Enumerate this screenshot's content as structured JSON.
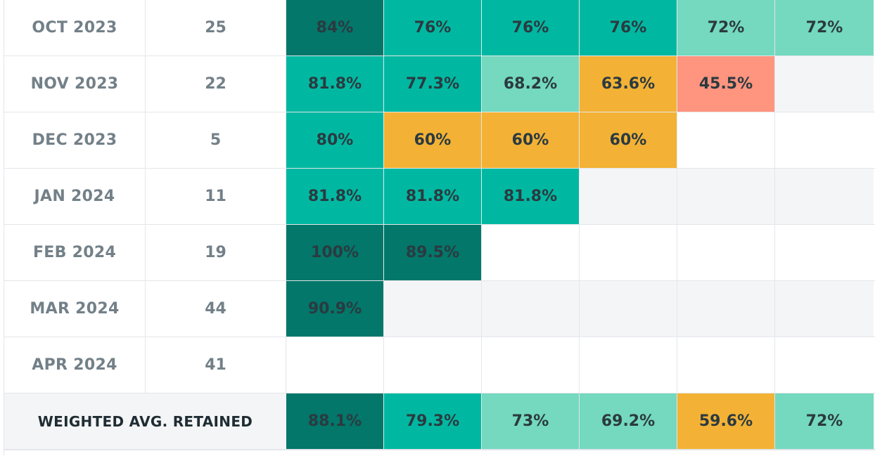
{
  "rows": [
    {
      "label": "OCT 2023",
      "count": "25",
      "cells": [
        {
          "value": "84%",
          "color": "#02776A"
        },
        {
          "value": "76%",
          "color": "#00B8A1"
        },
        {
          "value": "76%",
          "color": "#00B8A1"
        },
        {
          "value": "76%",
          "color": "#00B8A1"
        },
        {
          "value": "72%",
          "color": "#74D9BE"
        },
        {
          "value": "72%",
          "color": "#74D9BE"
        }
      ]
    },
    {
      "label": "NOV 2023",
      "count": "22",
      "cells": [
        {
          "value": "81.8%",
          "color": "#00B8A1"
        },
        {
          "value": "77.3%",
          "color": "#00B8A1"
        },
        {
          "value": "68.2%",
          "color": "#74D9BE"
        },
        {
          "value": "63.6%",
          "color": "#F3B235"
        },
        {
          "value": "45.5%",
          "color": "#FF947F"
        },
        {
          "value": "",
          "color": "#F4F5F7"
        }
      ]
    },
    {
      "label": "DEC 2023",
      "count": "5",
      "cells": [
        {
          "value": "80%",
          "color": "#00B8A1"
        },
        {
          "value": "60%",
          "color": "#F3B235"
        },
        {
          "value": "60%",
          "color": "#F3B235"
        },
        {
          "value": "60%",
          "color": "#F3B235"
        },
        {
          "value": "",
          "color": "#FFFFFF"
        },
        {
          "value": "",
          "color": "#FFFFFF"
        }
      ]
    },
    {
      "label": "JAN 2024",
      "count": "11",
      "cells": [
        {
          "value": "81.8%",
          "color": "#00B8A1"
        },
        {
          "value": "81.8%",
          "color": "#00B8A1"
        },
        {
          "value": "81.8%",
          "color": "#00B8A1"
        },
        {
          "value": "",
          "color": "#F4F5F7"
        },
        {
          "value": "",
          "color": "#F4F5F7"
        },
        {
          "value": "",
          "color": "#F4F5F7"
        }
      ]
    },
    {
      "label": "FEB 2024",
      "count": "19",
      "cells": [
        {
          "value": "100%",
          "color": "#02776A"
        },
        {
          "value": "89.5%",
          "color": "#02776A"
        },
        {
          "value": "",
          "color": "#FFFFFF"
        },
        {
          "value": "",
          "color": "#FFFFFF"
        },
        {
          "value": "",
          "color": "#FFFFFF"
        },
        {
          "value": "",
          "color": "#FFFFFF"
        }
      ]
    },
    {
      "label": "MAR 2024",
      "count": "44",
      "cells": [
        {
          "value": "90.9%",
          "color": "#02776A"
        },
        {
          "value": "",
          "color": "#F4F5F7"
        },
        {
          "value": "",
          "color": "#F4F5F7"
        },
        {
          "value": "",
          "color": "#F4F5F7"
        },
        {
          "value": "",
          "color": "#F4F5F7"
        },
        {
          "value": "",
          "color": "#F4F5F7"
        }
      ]
    },
    {
      "label": "APR 2024",
      "count": "41",
      "cells": [
        {
          "value": "",
          "color": "#FFFFFF"
        },
        {
          "value": "",
          "color": "#FFFFFF"
        },
        {
          "value": "",
          "color": "#FFFFFF"
        },
        {
          "value": "",
          "color": "#FFFFFF"
        },
        {
          "value": "",
          "color": "#FFFFFF"
        },
        {
          "value": "",
          "color": "#FFFFFF"
        }
      ]
    }
  ],
  "summary": {
    "label": "WEIGHTED AVG. RETAINED",
    "cells": [
      {
        "value": "88.1%",
        "color": "#02776A"
      },
      {
        "value": "79.3%",
        "color": "#00B8A1"
      },
      {
        "value": "73%",
        "color": "#74D9BE"
      },
      {
        "value": "69.2%",
        "color": "#74D9BE"
      },
      {
        "value": "59.6%",
        "color": "#F3B235"
      },
      {
        "value": "72%",
        "color": "#74D9BE"
      }
    ]
  }
}
